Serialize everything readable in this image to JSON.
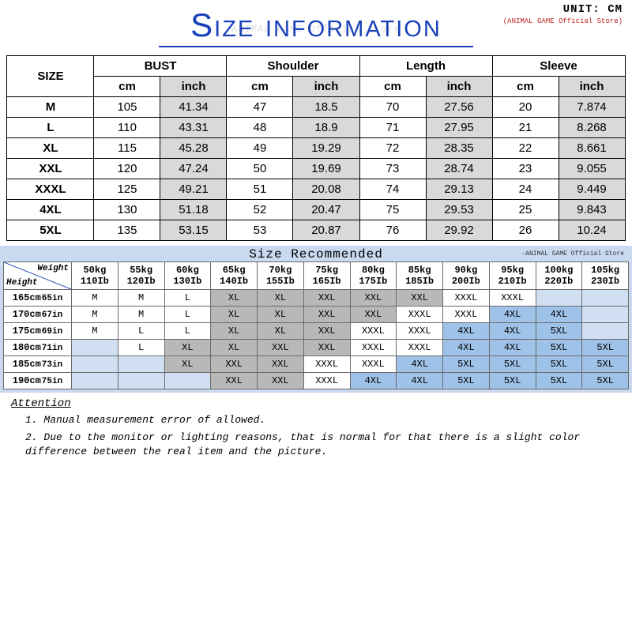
{
  "header": {
    "unit_label": "UNIT: CM",
    "store_label": "(ANIMAL GAME Official Store)",
    "watermark": "ANIMAL GAME Official Store",
    "title": "Size information"
  },
  "size_table": {
    "size_header": "SIZE",
    "groups": [
      "BUST",
      "Shoulder",
      "Length",
      "Sleeve"
    ],
    "unit_cm": "cm",
    "unit_inch": "inch",
    "rows": [
      {
        "size": "M",
        "bust_cm": "105",
        "bust_in": "41.34",
        "sh_cm": "47",
        "sh_in": "18.5",
        "len_cm": "70",
        "len_in": "27.56",
        "sl_cm": "20",
        "sl_in": "7.874"
      },
      {
        "size": "L",
        "bust_cm": "110",
        "bust_in": "43.31",
        "sh_cm": "48",
        "sh_in": "18.9",
        "len_cm": "71",
        "len_in": "27.95",
        "sl_cm": "21",
        "sl_in": "8.268"
      },
      {
        "size": "XL",
        "bust_cm": "115",
        "bust_in": "45.28",
        "sh_cm": "49",
        "sh_in": "19.29",
        "len_cm": "72",
        "len_in": "28.35",
        "sl_cm": "22",
        "sl_in": "8.661"
      },
      {
        "size": "XXL",
        "bust_cm": "120",
        "bust_in": "47.24",
        "sh_cm": "50",
        "sh_in": "19.69",
        "len_cm": "73",
        "len_in": "28.74",
        "sl_cm": "23",
        "sl_in": "9.055"
      },
      {
        "size": "XXXL",
        "bust_cm": "125",
        "bust_in": "49.21",
        "sh_cm": "51",
        "sh_in": "20.08",
        "len_cm": "74",
        "len_in": "29.13",
        "sl_cm": "24",
        "sl_in": "9.449"
      },
      {
        "size": "4XL",
        "bust_cm": "130",
        "bust_in": "51.18",
        "sh_cm": "52",
        "sh_in": "20.47",
        "len_cm": "75",
        "len_in": "29.53",
        "sl_cm": "25",
        "sl_in": "9.843"
      },
      {
        "size": "5XL",
        "bust_cm": "135",
        "bust_in": "53.15",
        "sh_cm": "53",
        "sh_in": "20.87",
        "len_cm": "76",
        "len_in": "29.92",
        "sl_cm": "26",
        "sl_in": "10.24"
      }
    ],
    "colors": {
      "border": "#000000",
      "inch_bg": "#d9d9d9",
      "title_color": "#1840b8"
    }
  },
  "rec_table": {
    "title": "Size Recommended",
    "store": "-ANIMAL GAME Official Store",
    "corner_weight": "Weight",
    "corner_height": "Height",
    "weights": [
      {
        "kg": "50kg",
        "lb": "110Ib"
      },
      {
        "kg": "55kg",
        "lb": "120Ib"
      },
      {
        "kg": "60kg",
        "lb": "130Ib"
      },
      {
        "kg": "65kg",
        "lb": "140Ib"
      },
      {
        "kg": "70kg",
        "lb": "155Ib"
      },
      {
        "kg": "75kg",
        "lb": "165Ib"
      },
      {
        "kg": "80kg",
        "lb": "175Ib"
      },
      {
        "kg": "85kg",
        "lb": "185Ib"
      },
      {
        "kg": "90kg",
        "lb": "200Ib"
      },
      {
        "kg": "95kg",
        "lb": "210Ib"
      },
      {
        "kg": "100kg",
        "lb": "220Ib"
      },
      {
        "kg": "105kg",
        "lb": "230Ib"
      }
    ],
    "heights": [
      {
        "cm": "165cm",
        "in": "65in"
      },
      {
        "cm": "170cm",
        "in": "67in"
      },
      {
        "cm": "175cm",
        "in": "69in"
      },
      {
        "cm": "180cm",
        "in": "71in"
      },
      {
        "cm": "185cm",
        "in": "73in"
      },
      {
        "cm": "190cm",
        "in": "75in"
      }
    ],
    "cells": [
      [
        {
          "v": "M"
        },
        {
          "v": "M"
        },
        {
          "v": "L"
        },
        {
          "v": "XL",
          "c": "g"
        },
        {
          "v": "XL",
          "c": "g"
        },
        {
          "v": "XXL",
          "c": "g"
        },
        {
          "v": "XXL",
          "c": "g"
        },
        {
          "v": "XXL",
          "c": "g"
        },
        {
          "v": "XXXL"
        },
        {
          "v": "XXXL"
        },
        {
          "v": "",
          "c": "e"
        },
        {
          "v": "",
          "c": "e"
        }
      ],
      [
        {
          "v": "M"
        },
        {
          "v": "M"
        },
        {
          "v": "L"
        },
        {
          "v": "XL",
          "c": "g"
        },
        {
          "v": "XL",
          "c": "g"
        },
        {
          "v": "XXL",
          "c": "g"
        },
        {
          "v": "XXL",
          "c": "g"
        },
        {
          "v": "XXXL"
        },
        {
          "v": "XXXL"
        },
        {
          "v": "4XL",
          "c": "b"
        },
        {
          "v": "4XL",
          "c": "b"
        },
        {
          "v": "",
          "c": "e"
        }
      ],
      [
        {
          "v": "M"
        },
        {
          "v": "L"
        },
        {
          "v": "L"
        },
        {
          "v": "XL",
          "c": "g"
        },
        {
          "v": "XL",
          "c": "g"
        },
        {
          "v": "XXL",
          "c": "g"
        },
        {
          "v": "XXXL"
        },
        {
          "v": "XXXL"
        },
        {
          "v": "4XL",
          "c": "b"
        },
        {
          "v": "4XL",
          "c": "b"
        },
        {
          "v": "5XL",
          "c": "b"
        },
        {
          "v": "",
          "c": "e"
        }
      ],
      [
        {
          "v": "",
          "c": "e"
        },
        {
          "v": "L"
        },
        {
          "v": "XL",
          "c": "g"
        },
        {
          "v": "XL",
          "c": "g"
        },
        {
          "v": "XXL",
          "c": "g"
        },
        {
          "v": "XXL",
          "c": "g"
        },
        {
          "v": "XXXL"
        },
        {
          "v": "XXXL"
        },
        {
          "v": "4XL",
          "c": "b"
        },
        {
          "v": "4XL",
          "c": "b"
        },
        {
          "v": "5XL",
          "c": "b"
        },
        {
          "v": "5XL",
          "c": "b"
        }
      ],
      [
        {
          "v": "",
          "c": "e"
        },
        {
          "v": "",
          "c": "e"
        },
        {
          "v": "XL",
          "c": "g"
        },
        {
          "v": "XXL",
          "c": "g"
        },
        {
          "v": "XXL",
          "c": "g"
        },
        {
          "v": "XXXL"
        },
        {
          "v": "XXXL"
        },
        {
          "v": "4XL",
          "c": "b"
        },
        {
          "v": "5XL",
          "c": "b"
        },
        {
          "v": "5XL",
          "c": "b"
        },
        {
          "v": "5XL",
          "c": "b"
        },
        {
          "v": "5XL",
          "c": "b"
        }
      ],
      [
        {
          "v": "",
          "c": "e"
        },
        {
          "v": "",
          "c": "e"
        },
        {
          "v": "",
          "c": "e"
        },
        {
          "v": "XXL",
          "c": "g"
        },
        {
          "v": "XXL",
          "c": "g"
        },
        {
          "v": "XXXL"
        },
        {
          "v": "4XL",
          "c": "b"
        },
        {
          "v": "4XL",
          "c": "b"
        },
        {
          "v": "5XL",
          "c": "b"
        },
        {
          "v": "5XL",
          "c": "b"
        },
        {
          "v": "5XL",
          "c": "b"
        },
        {
          "v": "5XL",
          "c": "b"
        }
      ]
    ],
    "colors": {
      "wrap_bg": "#c8d9f0",
      "gray": "#b8b8b8",
      "blue": "#9fc2e8",
      "empty": "#d0dff2",
      "border": "#6a6a6a"
    }
  },
  "attention": {
    "header": "Attention",
    "line1": "1. Manual measurement error of allowed.",
    "line2": "2.  Due to the monitor or lighting reasons, that is normal for that there is a slight color difference between the real item and the picture."
  }
}
